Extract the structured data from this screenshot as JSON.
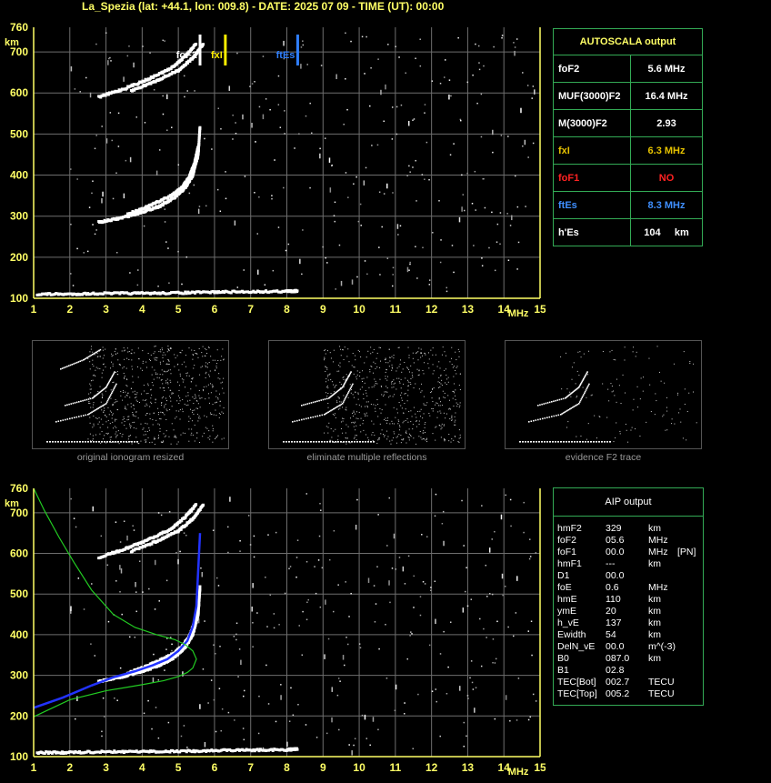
{
  "title": "La_Spezia (lat: +44.1, lon: 009.8) - DATE: 2025 07 09 - TIME (UT): 00:00",
  "colors": {
    "axis": "#ffff66",
    "grid": "#6e6e6e",
    "table_border": "#33aa55",
    "foF2_marker": "#ffffff",
    "fxI_marker": "#ffee00",
    "ftEs_marker": "#2f7fff",
    "profile_blue": "#2233ff",
    "profile_green": "#22cc22"
  },
  "autoscala": {
    "header": "AUTOSCALA output",
    "rows": [
      {
        "label": "foF2",
        "value": "5.6 MHz",
        "color": "#ffffff"
      },
      {
        "label": "MUF(3000)F2",
        "value": "16.4 MHz",
        "color": "#ffffff"
      },
      {
        "label": "M(3000)F2",
        "value": "2.93",
        "color": "#ffffff"
      },
      {
        "label": "fxI",
        "value": "6.3 MHz",
        "color": "#e6c200"
      },
      {
        "label": "foF1",
        "value": "NO",
        "color": "#ff2222"
      },
      {
        "label": "ftEs",
        "value": "8.3 MHz",
        "color": "#3f8fff"
      },
      {
        "label": "h'Es",
        "value": "104     km",
        "color": "#ffffff"
      }
    ]
  },
  "aip": {
    "header": "AIP output",
    "rows": [
      {
        "name": "hmF2",
        "value": "329",
        "unit": "km",
        "extra": ""
      },
      {
        "name": "foF2",
        "value": "05.6",
        "unit": "MHz",
        "extra": ""
      },
      {
        "name": "foF1",
        "value": "00.0",
        "unit": "MHz",
        "extra": "[PN]"
      },
      {
        "name": "hmF1",
        "value": "---",
        "unit": "km",
        "extra": ""
      },
      {
        "name": "D1",
        "value": "00.0",
        "unit": "",
        "extra": ""
      },
      {
        "name": "foE",
        "value": "0.6",
        "unit": "MHz",
        "extra": ""
      },
      {
        "name": "hmE",
        "value": "110",
        "unit": "km",
        "extra": ""
      },
      {
        "name": "ymE",
        "value": "20",
        "unit": "km",
        "extra": ""
      },
      {
        "name": "h_vE",
        "value": "137",
        "unit": "km",
        "extra": ""
      },
      {
        "name": "Ewidth",
        "value": "54",
        "unit": "km",
        "extra": ""
      },
      {
        "name": "DelN_vE",
        "value": "00.0",
        "unit": "m^(-3)",
        "extra": ""
      },
      {
        "name": "B0",
        "value": "087.0",
        "unit": "km",
        "extra": ""
      },
      {
        "name": "B1",
        "value": "02.8",
        "unit": "",
        "extra": ""
      },
      {
        "name": "TEC[Bot]",
        "value": "002.7",
        "unit": "TECU",
        "extra": ""
      },
      {
        "name": "TEC[Top]",
        "value": "005.2",
        "unit": "TECU",
        "extra": ""
      }
    ]
  },
  "thumbnails": [
    {
      "caption": "original ionogram resized"
    },
    {
      "caption": "eliminate multiple reflections"
    },
    {
      "caption": "evidence F2 trace"
    }
  ],
  "chart_data": [
    {
      "type": "scatter",
      "title": "",
      "xlabel": "MHz",
      "ylabel": "km",
      "xlim": [
        1,
        15
      ],
      "ylim": [
        100,
        760
      ],
      "x_ticks": [
        "1",
        "2",
        "3",
        "4",
        "5",
        "6",
        "7",
        "8",
        "9",
        "10",
        "11",
        "12",
        "13",
        "14",
        "15"
      ],
      "y_ticks": [
        "100",
        "200",
        "300",
        "400",
        "500",
        "600",
        "700",
        "760"
      ],
      "grid": true,
      "markers": [
        {
          "label": "foF2",
          "freq": 5.6,
          "color": "#ffffff"
        },
        {
          "label": "fxI",
          "freq": 6.3,
          "color": "#ffee00"
        },
        {
          "label": "ftEs",
          "freq": 8.3,
          "color": "#2f7fff"
        }
      ],
      "traces": [
        {
          "name": "F2 ordinary",
          "x": [
            2.8,
            3.4,
            4.0,
            4.5,
            4.9,
            5.2,
            5.4,
            5.55,
            5.6
          ],
          "y": [
            285,
            295,
            310,
            325,
            345,
            370,
            400,
            450,
            520
          ]
        },
        {
          "name": "F2 extraordinary",
          "x": [
            3.6,
            4.2,
            4.8,
            5.1,
            5.3,
            5.45,
            5.55
          ],
          "y": [
            305,
            325,
            350,
            370,
            395,
            430,
            470
          ]
        },
        {
          "name": "F2 second hop",
          "x": [
            2.8,
            3.5,
            4.2,
            4.8,
            5.2,
            5.5
          ],
          "y": [
            590,
            610,
            635,
            660,
            690,
            720
          ]
        },
        {
          "name": "F2 second hop x",
          "x": [
            3.7,
            4.4,
            5.0,
            5.4,
            5.7
          ],
          "y": [
            605,
            630,
            655,
            685,
            720
          ]
        },
        {
          "name": "Es",
          "x": [
            1.1,
            2.0,
            3.0,
            4.0,
            5.0,
            6.0,
            7.0,
            8.0,
            8.3
          ],
          "y": [
            110,
            110,
            112,
            112,
            113,
            115,
            116,
            117,
            118
          ]
        }
      ]
    },
    {
      "type": "line",
      "title": "",
      "xlabel": "MHz",
      "ylabel": "km",
      "xlim": [
        1,
        15
      ],
      "ylim": [
        100,
        760
      ],
      "x_ticks": [
        "1",
        "2",
        "3",
        "4",
        "5",
        "6",
        "7",
        "8",
        "9",
        "10",
        "11",
        "12",
        "13",
        "14",
        "15"
      ],
      "y_ticks": [
        "100",
        "200",
        "300",
        "400",
        "500",
        "600",
        "700",
        "760"
      ],
      "grid": true,
      "traces": [
        {
          "name": "F2 ordinary",
          "x": [
            2.8,
            3.4,
            4.0,
            4.5,
            4.9,
            5.2,
            5.4,
            5.55,
            5.6
          ],
          "y": [
            285,
            295,
            310,
            325,
            345,
            370,
            400,
            450,
            520
          ]
        },
        {
          "name": "F2 extraordinary",
          "x": [
            3.6,
            4.2,
            4.8,
            5.1,
            5.3,
            5.45,
            5.55
          ],
          "y": [
            305,
            325,
            350,
            370,
            395,
            430,
            470
          ]
        },
        {
          "name": "F2 second hop",
          "x": [
            2.8,
            3.5,
            4.2,
            4.8,
            5.2,
            5.5
          ],
          "y": [
            590,
            610,
            635,
            660,
            690,
            720
          ]
        },
        {
          "name": "F2 second hop x",
          "x": [
            3.7,
            4.4,
            5.0,
            5.4,
            5.7
          ],
          "y": [
            605,
            630,
            655,
            685,
            720
          ]
        },
        {
          "name": "Es",
          "x": [
            1.1,
            2.0,
            3.0,
            4.0,
            5.0,
            6.0,
            7.0,
            8.0,
            8.3
          ],
          "y": [
            110,
            110,
            112,
            112,
            113,
            115,
            116,
            117,
            118
          ]
        }
      ],
      "series": [
        {
          "color": "#2233ff",
          "x": [
            1.0,
            1.8,
            2.6,
            3.2,
            3.8,
            4.3,
            4.7,
            5.0,
            5.25,
            5.4,
            5.5,
            5.55,
            5.6
          ],
          "y": [
            220,
            245,
            275,
            295,
            310,
            325,
            340,
            360,
            385,
            420,
            470,
            560,
            650
          ]
        },
        {
          "color": "#22cc22",
          "x": [
            1.0,
            2.0,
            3.0,
            4.0,
            4.6,
            5.0,
            5.25,
            5.4,
            5.5,
            5.4,
            5.2,
            4.9,
            4.4,
            3.8,
            3.2,
            2.6,
            2.1,
            1.7,
            1.3,
            1.0
          ],
          "y": [
            198,
            240,
            262,
            277,
            287,
            297,
            307,
            318,
            340,
            360,
            375,
            388,
            400,
            418,
            450,
            510,
            580,
            640,
            705,
            760
          ]
        }
      ]
    }
  ]
}
